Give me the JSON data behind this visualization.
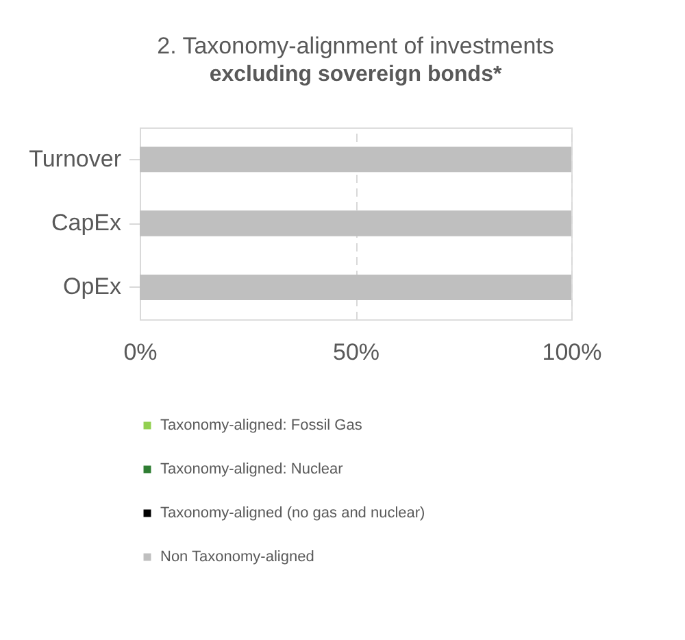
{
  "chart_data": {
    "type": "bar",
    "orientation": "horizontal",
    "stacked": true,
    "title": "2. Taxonomy-alignment of investments",
    "subtitle": "excluding sovereign bonds*",
    "categories": [
      "Turnover",
      "CapEx",
      "OpEx"
    ],
    "series": [
      {
        "name": "Taxonomy-aligned: Fossil Gas",
        "color": "#92d050",
        "values": [
          0,
          0,
          0
        ]
      },
      {
        "name": "Taxonomy-aligned: Nuclear",
        "color": "#2e7d32",
        "values": [
          0,
          0,
          0
        ]
      },
      {
        "name": "Taxonomy-aligned (no gas and nuclear)",
        "color": "#000000",
        "values": [
          0,
          0,
          0
        ]
      },
      {
        "name": "Non Taxonomy-aligned",
        "color": "#bfbfbf",
        "values": [
          100,
          100,
          100
        ]
      }
    ],
    "xlim": [
      0,
      100
    ],
    "xticks": [
      {
        "value": 0,
        "label": "0%"
      },
      {
        "value": 50,
        "label": "50%"
      },
      {
        "value": 100,
        "label": "100%"
      }
    ],
    "grid": "x",
    "legend": "bottom"
  }
}
